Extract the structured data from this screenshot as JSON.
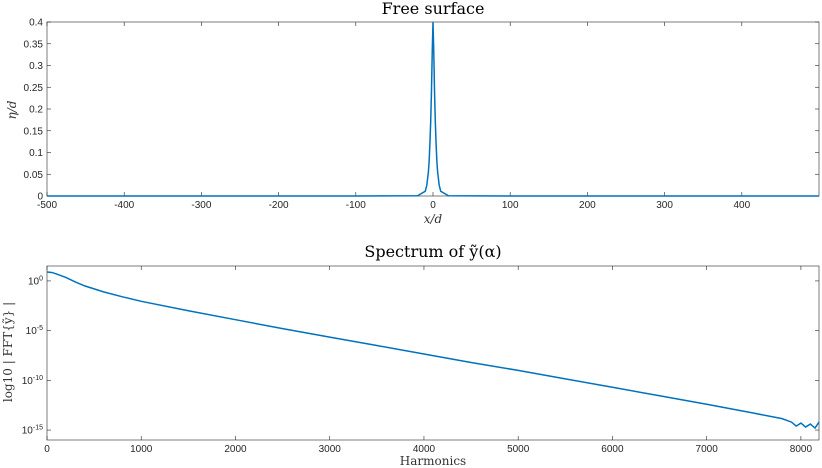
{
  "chart_data": [
    {
      "type": "line",
      "title": "Free surface",
      "xlabel": "x/d",
      "ylabel": "η/d",
      "xlim": [
        -500,
        500
      ],
      "ylim": [
        0,
        0.4
      ],
      "xticks": [
        -500,
        -400,
        -300,
        -200,
        -100,
        0,
        100,
        200,
        300,
        400
      ],
      "xtick_labels": [
        "-500",
        "-400",
        "-300",
        "-200",
        "-100",
        "0",
        "100",
        "200",
        "300",
        "400"
      ],
      "yticks": [
        0,
        0.05,
        0.1,
        0.15,
        0.2,
        0.25,
        0.3,
        0.35,
        0.4
      ],
      "ytick_labels": [
        "0",
        "0.05",
        "0.1",
        "0.15",
        "0.2",
        "0.25",
        "0.3",
        "0.35",
        "0.4"
      ],
      "grid": false,
      "x": [
        -500,
        -100,
        -20,
        -10,
        -8,
        -6,
        -5,
        -4,
        -3,
        -2,
        -1,
        0,
        1,
        2,
        3,
        4,
        5,
        6,
        8,
        10,
        20,
        100,
        500
      ],
      "y": [
        0,
        0,
        0.0005,
        0.011,
        0.025,
        0.055,
        0.08,
        0.12,
        0.17,
        0.24,
        0.33,
        0.4,
        0.33,
        0.24,
        0.17,
        0.12,
        0.08,
        0.055,
        0.025,
        0.011,
        0.0005,
        0,
        0
      ]
    },
    {
      "type": "line",
      "title": "Spectrum of ỹ(α)",
      "xlabel": "Harmonics",
      "ylabel": "log10 | FFT{ỹ} |",
      "xlim": [
        0,
        8192
      ],
      "ylim": [
        -16,
        1.5
      ],
      "yscale": "log",
      "xticks": [
        0,
        1000,
        2000,
        3000,
        4000,
        5000,
        6000,
        7000,
        8000
      ],
      "xtick_labels": [
        "0",
        "1000",
        "2000",
        "3000",
        "4000",
        "5000",
        "6000",
        "7000",
        "8000"
      ],
      "yticks": [
        0,
        -5,
        -10,
        -15
      ],
      "ytick_labels": [
        "10^0",
        "10^-5",
        "10^-10",
        "10^-15"
      ],
      "grid": false,
      "x": [
        0,
        50,
        100,
        200,
        300,
        400,
        600,
        800,
        1000,
        1500,
        2000,
        2500,
        3000,
        3500,
        4000,
        4500,
        5000,
        5500,
        6000,
        6500,
        7000,
        7500,
        7800,
        7900,
        7950,
        8000,
        8050,
        8100,
        8150,
        8192
      ],
      "y": [
        0.9,
        0.85,
        0.7,
        0.35,
        -0.1,
        -0.5,
        -1.1,
        -1.6,
        -2.05,
        -3.0,
        -3.9,
        -4.8,
        -5.65,
        -6.5,
        -7.35,
        -8.2,
        -9.0,
        -9.85,
        -10.7,
        -11.55,
        -12.4,
        -13.3,
        -13.85,
        -14.2,
        -14.6,
        -14.3,
        -14.7,
        -14.4,
        -14.8,
        -14.2
      ]
    }
  ]
}
